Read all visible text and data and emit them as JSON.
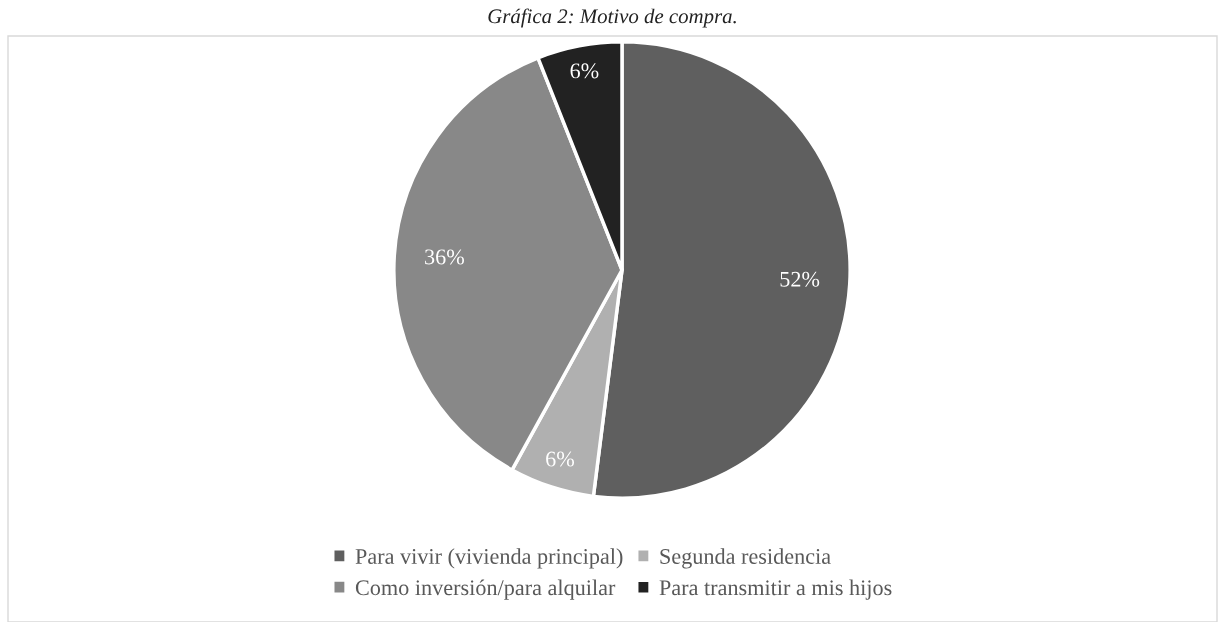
{
  "chart_data": {
    "type": "pie",
    "title": "Gráfica 2: Motivo de compra.",
    "categories": [
      "Para vivir (vivienda principal)",
      "Segunda residencia",
      "Como inversión/para alquilar",
      "Para transmitir a mis hijos"
    ],
    "values": [
      52,
      6,
      36,
      6
    ],
    "colors": [
      "#5f5f5f",
      "#b0b0b0",
      "#888888",
      "#222222"
    ],
    "value_labels": [
      "52%",
      "6%",
      "36%",
      "6%"
    ],
    "legend": "bottom"
  }
}
